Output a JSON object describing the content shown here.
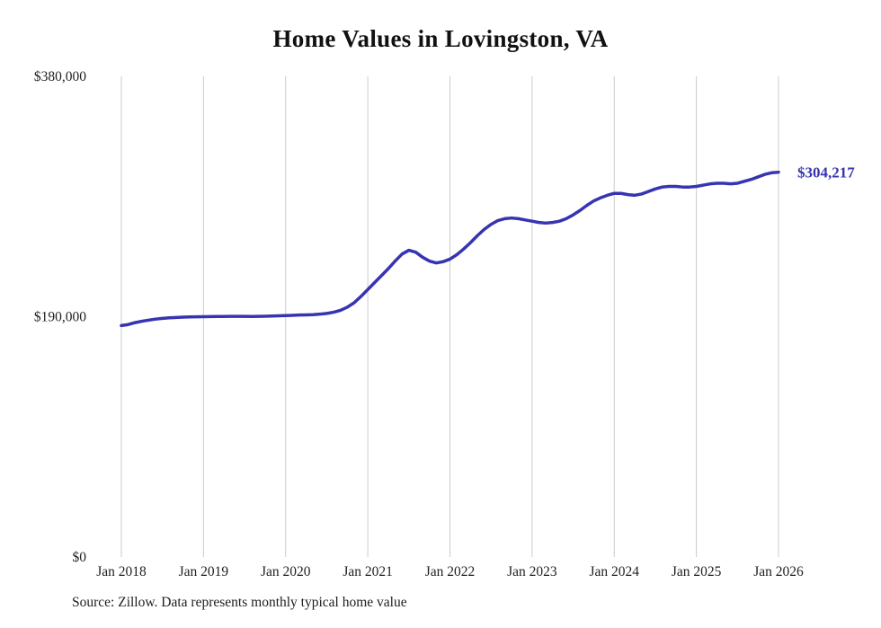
{
  "page": {
    "background_color": "#ffffff"
  },
  "chart_data": {
    "type": "line",
    "title": "Home Values in Lovingston, VA",
    "source": "Source: Zillow. Data represents monthly typical home value",
    "series_name": "Typical home value",
    "unit": "USD",
    "frequency": "monthly",
    "x_start": "Jan 2018",
    "x_end": "Jan 2026",
    "x_tick_labels": [
      "Jan 2018",
      "Jan 2019",
      "Jan 2020",
      "Jan 2021",
      "Jan 2022",
      "Jan 2023",
      "Jan 2024",
      "Jan 2025",
      "Jan 2026"
    ],
    "x_tick_month_indices": [
      0,
      12,
      24,
      36,
      48,
      60,
      72,
      84,
      96
    ],
    "y_ticks": [
      {
        "value": 0,
        "label": "$0"
      },
      {
        "value": 190000,
        "label": "$190,000"
      },
      {
        "value": 380000,
        "label": "$380,000"
      }
    ],
    "ylim": [
      0,
      380000
    ],
    "grid": "vertical-only",
    "legend": "none",
    "end_label": "$304,217",
    "end_value": 304217,
    "line_color": "#3734b2",
    "grid_color": "#cccccc",
    "values": [
      183000,
      183800,
      185300,
      186400,
      187300,
      188100,
      188700,
      189100,
      189400,
      189600,
      189800,
      189900,
      190000,
      190100,
      190200,
      190200,
      190300,
      190300,
      190300,
      190200,
      190300,
      190400,
      190500,
      190700,
      190900,
      191100,
      191300,
      191400,
      191600,
      192000,
      192600,
      193500,
      195000,
      197500,
      201000,
      206000,
      211500,
      217000,
      222500,
      228000,
      234000,
      239500,
      242500,
      241000,
      237000,
      234000,
      232500,
      233500,
      235500,
      239000,
      243500,
      248500,
      254000,
      259000,
      263000,
      266000,
      267500,
      268000,
      267500,
      266500,
      265500,
      264500,
      264000,
      264500,
      265500,
      267500,
      270500,
      274000,
      278000,
      281500,
      284000,
      286000,
      287500,
      287500,
      286500,
      286000,
      287000,
      289000,
      291000,
      292500,
      293000,
      293000,
      292500,
      292500,
      293000,
      294000,
      295000,
      295500,
      295500,
      295000,
      295500,
      297000,
      298500,
      300500,
      302500,
      303800,
      304217
    ]
  }
}
